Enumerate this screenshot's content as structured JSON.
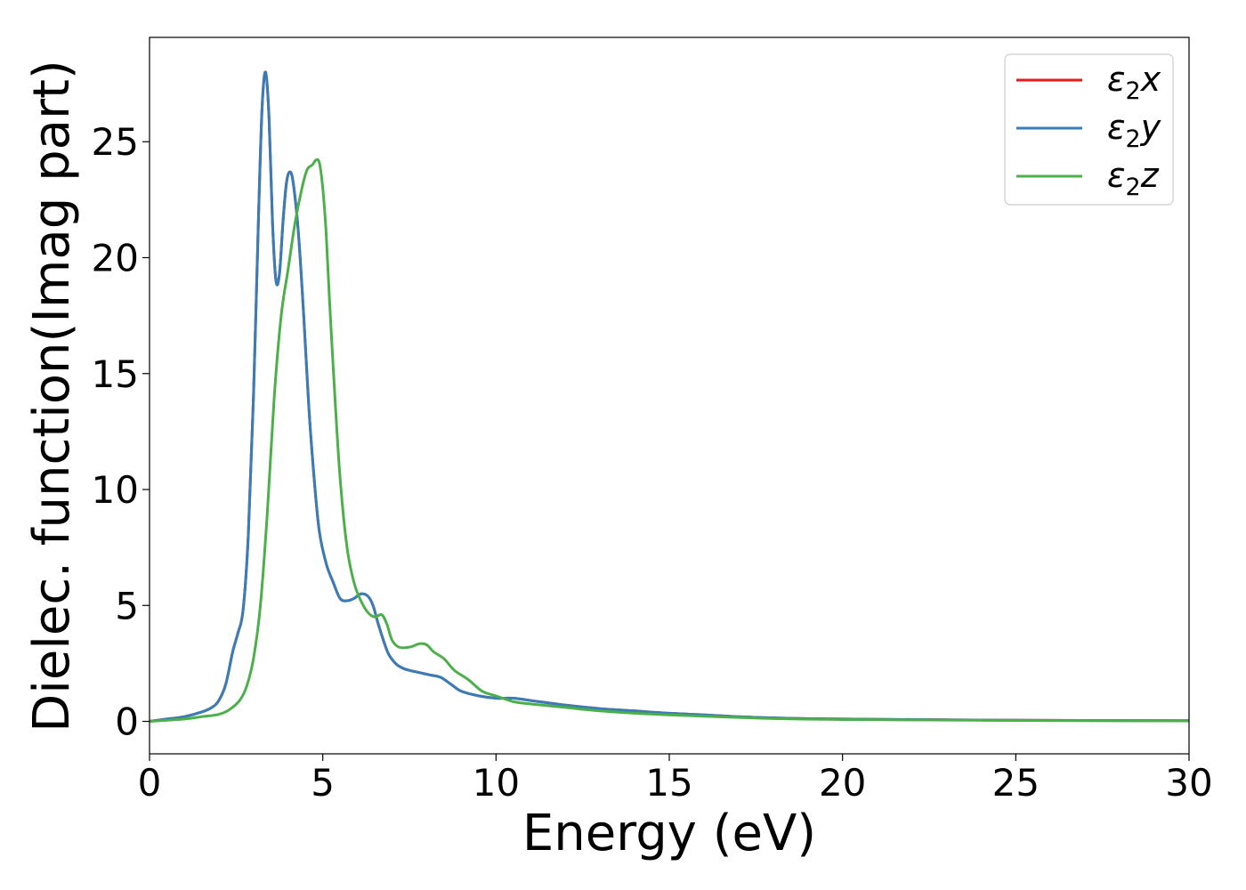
{
  "chart_data": {
    "type": "line",
    "title": "",
    "xlabel": "Energy (eV)",
    "ylabel": "Dielec. function(Imag part)",
    "xlim": [
      0,
      30
    ],
    "ylim": [
      -1.4,
      29.5
    ],
    "xticks": [
      0,
      5,
      10,
      15,
      20,
      25,
      30
    ],
    "yticks": [
      0,
      5,
      10,
      15,
      20,
      25
    ],
    "grid": false,
    "legend_position": "top-right",
    "series": [
      {
        "name": "ε₂x",
        "legend_base": "ε",
        "legend_sub": "2",
        "legend_var": "x",
        "color": "#e41a1c",
        "x": [
          0,
          0.5,
          1.0,
          1.5,
          1.8,
          2.0,
          2.2,
          2.4,
          2.55,
          2.7,
          2.85,
          3.0,
          3.15,
          3.25,
          3.35,
          3.45,
          3.55,
          3.65,
          3.75,
          3.85,
          3.95,
          4.05,
          4.15,
          4.3,
          4.45,
          4.6,
          4.75,
          4.9,
          5.1,
          5.3,
          5.5,
          5.7,
          5.9,
          6.1,
          6.3,
          6.45,
          6.6,
          6.75,
          6.9,
          7.1,
          7.3,
          7.5,
          7.8,
          8.1,
          8.4,
          8.7,
          9.0,
          9.5,
          10.0,
          10.5,
          11.0,
          12.0,
          13.0,
          14.0,
          15.0,
          16.0,
          17.0,
          18.0,
          20.0,
          25.0,
          30.0
        ],
        "y": [
          0,
          0.1,
          0.2,
          0.4,
          0.6,
          0.9,
          1.6,
          3.0,
          3.8,
          4.8,
          8.0,
          14.0,
          22.0,
          26.5,
          28.0,
          26.0,
          21.5,
          19.0,
          19.3,
          21.5,
          23.2,
          23.7,
          23.2,
          21.0,
          17.5,
          13.5,
          10.5,
          8.2,
          6.8,
          6.0,
          5.3,
          5.2,
          5.3,
          5.5,
          5.4,
          5.0,
          4.2,
          3.5,
          2.9,
          2.5,
          2.3,
          2.2,
          2.1,
          2.0,
          1.9,
          1.6,
          1.3,
          1.1,
          1.0,
          1.0,
          0.9,
          0.7,
          0.55,
          0.45,
          0.35,
          0.28,
          0.2,
          0.15,
          0.1,
          0.05,
          0.03
        ]
      },
      {
        "name": "ε₂y",
        "legend_base": "ε",
        "legend_sub": "2",
        "legend_var": "y",
        "color": "#377eb8",
        "x": [
          0,
          0.5,
          1.0,
          1.5,
          1.8,
          2.0,
          2.2,
          2.4,
          2.55,
          2.7,
          2.85,
          3.0,
          3.15,
          3.25,
          3.35,
          3.45,
          3.55,
          3.65,
          3.75,
          3.85,
          3.95,
          4.05,
          4.15,
          4.3,
          4.45,
          4.6,
          4.75,
          4.9,
          5.1,
          5.3,
          5.5,
          5.7,
          5.9,
          6.1,
          6.3,
          6.45,
          6.6,
          6.75,
          6.9,
          7.1,
          7.3,
          7.5,
          7.8,
          8.1,
          8.4,
          8.7,
          9.0,
          9.5,
          10.0,
          10.5,
          11.0,
          12.0,
          13.0,
          14.0,
          15.0,
          16.0,
          17.0,
          18.0,
          20.0,
          25.0,
          30.0
        ],
        "y": [
          0,
          0.1,
          0.2,
          0.4,
          0.6,
          0.9,
          1.6,
          3.0,
          3.8,
          4.8,
          8.0,
          14.0,
          22.0,
          26.5,
          28.0,
          26.0,
          21.5,
          19.0,
          19.3,
          21.5,
          23.2,
          23.7,
          23.2,
          21.0,
          17.5,
          13.5,
          10.5,
          8.2,
          6.8,
          6.0,
          5.3,
          5.2,
          5.3,
          5.5,
          5.4,
          5.0,
          4.2,
          3.5,
          2.9,
          2.5,
          2.3,
          2.2,
          2.1,
          2.0,
          1.9,
          1.6,
          1.3,
          1.1,
          1.0,
          1.0,
          0.9,
          0.7,
          0.55,
          0.45,
          0.35,
          0.28,
          0.2,
          0.15,
          0.1,
          0.05,
          0.03
        ]
      },
      {
        "name": "ε₂z",
        "legend_base": "ε",
        "legend_sub": "2",
        "legend_var": "z",
        "color": "#4daf4a",
        "x": [
          0,
          0.5,
          1.0,
          1.5,
          2.0,
          2.3,
          2.6,
          2.8,
          3.0,
          3.2,
          3.4,
          3.6,
          3.8,
          4.0,
          4.2,
          4.4,
          4.55,
          4.7,
          4.8,
          4.9,
          5.0,
          5.1,
          5.2,
          5.35,
          5.5,
          5.7,
          5.9,
          6.1,
          6.3,
          6.5,
          6.7,
          6.85,
          7.0,
          7.2,
          7.5,
          7.8,
          8.0,
          8.2,
          8.5,
          8.8,
          9.2,
          9.6,
          10.0,
          10.5,
          11.0,
          12.0,
          13.0,
          14.0,
          15.0,
          16.0,
          17.0,
          18.0,
          20.0,
          25.0,
          30.0
        ],
        "y": [
          0,
          0.05,
          0.1,
          0.2,
          0.3,
          0.5,
          0.9,
          1.5,
          2.7,
          5.0,
          9.0,
          14.0,
          17.5,
          19.5,
          21.5,
          23.0,
          23.8,
          24.0,
          24.2,
          24.1,
          23.0,
          21.0,
          18.0,
          14.0,
          10.5,
          7.5,
          6.0,
          5.2,
          4.7,
          4.5,
          4.6,
          4.2,
          3.5,
          3.2,
          3.2,
          3.35,
          3.3,
          3.0,
          2.7,
          2.2,
          1.8,
          1.3,
          1.1,
          0.85,
          0.75,
          0.6,
          0.45,
          0.35,
          0.28,
          0.22,
          0.17,
          0.12,
          0.08,
          0.04,
          0.02
        ]
      }
    ]
  }
}
